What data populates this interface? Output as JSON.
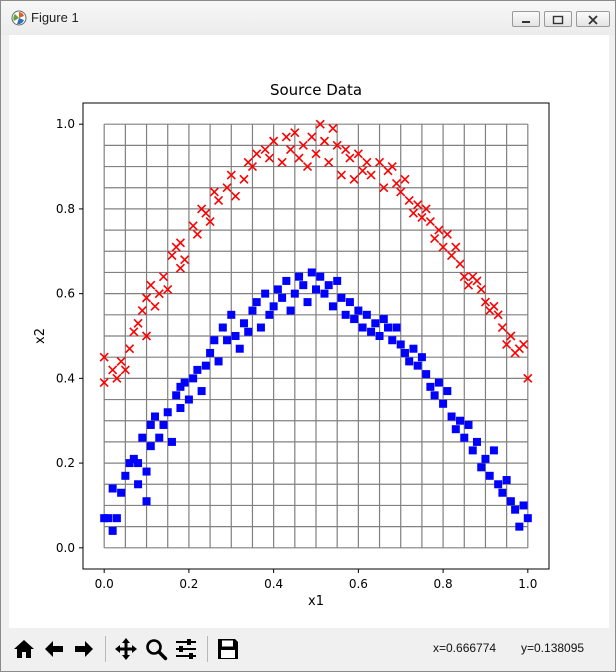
{
  "window": {
    "title": "Figure 1"
  },
  "toolbar": {
    "buttons": [
      "home-icon",
      "back-arrow-icon",
      "forward-arrow-icon",
      "pan-move-icon",
      "zoom-magnifier-icon",
      "configure-subplots-icon",
      "save-disk-icon"
    ],
    "coord_x": "x=0.666774",
    "coord_y": "y=0.138095"
  },
  "chart_data": {
    "type": "scatter",
    "title": "Source Data",
    "xlabel": "x1",
    "ylabel": "x2",
    "xlim": [
      -0.05,
      1.05
    ],
    "ylim": [
      -0.05,
      1.05
    ],
    "xticks": [
      "0.0",
      "0.2",
      "0.4",
      "0.6",
      "0.8",
      "1.0"
    ],
    "yticks": [
      "0.0",
      "0.2",
      "0.4",
      "0.6",
      "0.8",
      "1.0"
    ],
    "grid": true,
    "grid_step": 0.05,
    "series": [
      {
        "marker": "x",
        "color": "#ff0000",
        "points": [
          [
            0.0,
            0.39
          ],
          [
            0.0,
            0.45
          ],
          [
            0.02,
            0.42
          ],
          [
            0.03,
            0.4
          ],
          [
            0.04,
            0.44
          ],
          [
            0.05,
            0.42
          ],
          [
            0.06,
            0.47
          ],
          [
            0.07,
            0.51
          ],
          [
            0.08,
            0.53
          ],
          [
            0.09,
            0.56
          ],
          [
            0.1,
            0.59
          ],
          [
            0.1,
            0.5
          ],
          [
            0.11,
            0.62
          ],
          [
            0.12,
            0.57
          ],
          [
            0.13,
            0.6
          ],
          [
            0.14,
            0.64
          ],
          [
            0.15,
            0.61
          ],
          [
            0.16,
            0.69
          ],
          [
            0.17,
            0.71
          ],
          [
            0.18,
            0.66
          ],
          [
            0.18,
            0.72
          ],
          [
            0.19,
            0.68
          ],
          [
            0.21,
            0.76
          ],
          [
            0.22,
            0.74
          ],
          [
            0.23,
            0.8
          ],
          [
            0.24,
            0.79
          ],
          [
            0.25,
            0.77
          ],
          [
            0.26,
            0.84
          ],
          [
            0.27,
            0.82
          ],
          [
            0.29,
            0.85
          ],
          [
            0.3,
            0.88
          ],
          [
            0.31,
            0.83
          ],
          [
            0.33,
            0.87
          ],
          [
            0.34,
            0.91
          ],
          [
            0.35,
            0.9
          ],
          [
            0.36,
            0.93
          ],
          [
            0.38,
            0.94
          ],
          [
            0.39,
            0.92
          ],
          [
            0.4,
            0.96
          ],
          [
            0.42,
            0.91
          ],
          [
            0.43,
            0.97
          ],
          [
            0.44,
            0.94
          ],
          [
            0.45,
            0.98
          ],
          [
            0.46,
            0.92
          ],
          [
            0.47,
            0.95
          ],
          [
            0.48,
            0.9
          ],
          [
            0.49,
            0.97
          ],
          [
            0.5,
            0.93
          ],
          [
            0.51,
            1.0
          ],
          [
            0.52,
            0.96
          ],
          [
            0.53,
            0.91
          ],
          [
            0.54,
            0.99
          ],
          [
            0.55,
            0.95
          ],
          [
            0.56,
            0.88
          ],
          [
            0.57,
            0.94
          ],
          [
            0.58,
            0.92
          ],
          [
            0.59,
            0.87
          ],
          [
            0.6,
            0.93
          ],
          [
            0.61,
            0.89
          ],
          [
            0.62,
            0.91
          ],
          [
            0.63,
            0.88
          ],
          [
            0.65,
            0.91
          ],
          [
            0.66,
            0.85
          ],
          [
            0.67,
            0.89
          ],
          [
            0.68,
            0.9
          ],
          [
            0.69,
            0.86
          ],
          [
            0.7,
            0.84
          ],
          [
            0.71,
            0.87
          ],
          [
            0.72,
            0.82
          ],
          [
            0.73,
            0.79
          ],
          [
            0.74,
            0.81
          ],
          [
            0.75,
            0.78
          ],
          [
            0.76,
            0.8
          ],
          [
            0.77,
            0.77
          ],
          [
            0.78,
            0.73
          ],
          [
            0.79,
            0.75
          ],
          [
            0.8,
            0.71
          ],
          [
            0.81,
            0.74
          ],
          [
            0.82,
            0.69
          ],
          [
            0.83,
            0.71
          ],
          [
            0.84,
            0.67
          ],
          [
            0.85,
            0.64
          ],
          [
            0.86,
            0.62
          ],
          [
            0.87,
            0.64
          ],
          [
            0.88,
            0.63
          ],
          [
            0.89,
            0.61
          ],
          [
            0.9,
            0.58
          ],
          [
            0.91,
            0.56
          ],
          [
            0.92,
            0.57
          ],
          [
            0.93,
            0.55
          ],
          [
            0.94,
            0.52
          ],
          [
            0.95,
            0.48
          ],
          [
            0.96,
            0.5
          ],
          [
            0.97,
            0.46
          ],
          [
            0.98,
            0.47
          ],
          [
            0.99,
            0.48
          ],
          [
            1.0,
            0.4
          ]
        ]
      },
      {
        "marker": "s",
        "color": "#0000ff",
        "points": [
          [
            0.0,
            0.07
          ],
          [
            0.01,
            0.07
          ],
          [
            0.02,
            0.04
          ],
          [
            0.02,
            0.14
          ],
          [
            0.03,
            0.07
          ],
          [
            0.04,
            0.13
          ],
          [
            0.05,
            0.17
          ],
          [
            0.06,
            0.2
          ],
          [
            0.07,
            0.21
          ],
          [
            0.08,
            0.2
          ],
          [
            0.08,
            0.15
          ],
          [
            0.09,
            0.26
          ],
          [
            0.1,
            0.11
          ],
          [
            0.1,
            0.18
          ],
          [
            0.11,
            0.24
          ],
          [
            0.11,
            0.29
          ],
          [
            0.12,
            0.31
          ],
          [
            0.13,
            0.26
          ],
          [
            0.14,
            0.29
          ],
          [
            0.15,
            0.32
          ],
          [
            0.16,
            0.25
          ],
          [
            0.17,
            0.36
          ],
          [
            0.18,
            0.38
          ],
          [
            0.18,
            0.33
          ],
          [
            0.19,
            0.39
          ],
          [
            0.2,
            0.35
          ],
          [
            0.21,
            0.4
          ],
          [
            0.22,
            0.42
          ],
          [
            0.23,
            0.37
          ],
          [
            0.24,
            0.43
          ],
          [
            0.25,
            0.46
          ],
          [
            0.26,
            0.49
          ],
          [
            0.27,
            0.44
          ],
          [
            0.28,
            0.52
          ],
          [
            0.29,
            0.49
          ],
          [
            0.3,
            0.55
          ],
          [
            0.31,
            0.5
          ],
          [
            0.32,
            0.47
          ],
          [
            0.33,
            0.53
          ],
          [
            0.34,
            0.51
          ],
          [
            0.35,
            0.56
          ],
          [
            0.36,
            0.58
          ],
          [
            0.37,
            0.52
          ],
          [
            0.38,
            0.6
          ],
          [
            0.39,
            0.55
          ],
          [
            0.4,
            0.57
          ],
          [
            0.41,
            0.61
          ],
          [
            0.42,
            0.59
          ],
          [
            0.43,
            0.63
          ],
          [
            0.44,
            0.56
          ],
          [
            0.45,
            0.6
          ],
          [
            0.46,
            0.64
          ],
          [
            0.47,
            0.62
          ],
          [
            0.48,
            0.58
          ],
          [
            0.49,
            0.65
          ],
          [
            0.5,
            0.61
          ],
          [
            0.51,
            0.64
          ],
          [
            0.52,
            0.6
          ],
          [
            0.53,
            0.62
          ],
          [
            0.54,
            0.57
          ],
          [
            0.55,
            0.63
          ],
          [
            0.56,
            0.59
          ],
          [
            0.57,
            0.55
          ],
          [
            0.58,
            0.58
          ],
          [
            0.59,
            0.54
          ],
          [
            0.6,
            0.56
          ],
          [
            0.61,
            0.52
          ],
          [
            0.62,
            0.55
          ],
          [
            0.63,
            0.51
          ],
          [
            0.64,
            0.53
          ],
          [
            0.65,
            0.5
          ],
          [
            0.66,
            0.54
          ],
          [
            0.67,
            0.52
          ],
          [
            0.68,
            0.49
          ],
          [
            0.69,
            0.52
          ],
          [
            0.7,
            0.48
          ],
          [
            0.71,
            0.46
          ],
          [
            0.72,
            0.44
          ],
          [
            0.73,
            0.47
          ],
          [
            0.74,
            0.43
          ],
          [
            0.75,
            0.45
          ],
          [
            0.76,
            0.41
          ],
          [
            0.77,
            0.38
          ],
          [
            0.78,
            0.36
          ],
          [
            0.79,
            0.39
          ],
          [
            0.8,
            0.34
          ],
          [
            0.81,
            0.37
          ],
          [
            0.82,
            0.31
          ],
          [
            0.83,
            0.28
          ],
          [
            0.84,
            0.3
          ],
          [
            0.85,
            0.26
          ],
          [
            0.86,
            0.29
          ],
          [
            0.87,
            0.23
          ],
          [
            0.88,
            0.25
          ],
          [
            0.89,
            0.19
          ],
          [
            0.9,
            0.21
          ],
          [
            0.91,
            0.17
          ],
          [
            0.92,
            0.23
          ],
          [
            0.93,
            0.15
          ],
          [
            0.94,
            0.13
          ],
          [
            0.95,
            0.16
          ],
          [
            0.96,
            0.11
          ],
          [
            0.97,
            0.09
          ],
          [
            0.98,
            0.05
          ],
          [
            0.99,
            0.1
          ],
          [
            1.0,
            0.07
          ]
        ]
      }
    ]
  }
}
